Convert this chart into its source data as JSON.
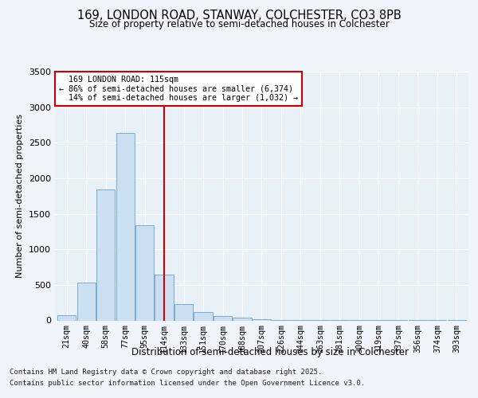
{
  "title1": "169, LONDON ROAD, STANWAY, COLCHESTER, CO3 8PB",
  "title2": "Size of property relative to semi-detached houses in Colchester",
  "xlabel": "Distribution of semi-detached houses by size in Colchester",
  "ylabel": "Number of semi-detached properties",
  "categories": [
    "21sqm",
    "40sqm",
    "58sqm",
    "77sqm",
    "95sqm",
    "114sqm",
    "133sqm",
    "151sqm",
    "170sqm",
    "188sqm",
    "207sqm",
    "226sqm",
    "244sqm",
    "263sqm",
    "281sqm",
    "300sqm",
    "319sqm",
    "337sqm",
    "356sqm",
    "374sqm",
    "393sqm"
  ],
  "values": [
    75,
    530,
    1840,
    2640,
    1340,
    640,
    230,
    115,
    65,
    40,
    18,
    8,
    4,
    2,
    1,
    0.5,
    0.5,
    0.5,
    0.5,
    0.5,
    0.5
  ],
  "bar_color": "#ccdff0",
  "bar_edge_color": "#7aabcf",
  "marker_index": 5,
  "marker_label": "169 LONDON ROAD: 115sqm",
  "pct_smaller": "86% of semi-detached houses are smaller (6,374)",
  "pct_larger": "14% of semi-detached houses are larger (1,032)",
  "marker_color": "#cc0000",
  "ylim": [
    0,
    3500
  ],
  "yticks": [
    0,
    500,
    1000,
    1500,
    2000,
    2500,
    3000,
    3500
  ],
  "footnote1": "Contains HM Land Registry data © Crown copyright and database right 2025.",
  "footnote2": "Contains public sector information licensed under the Open Government Licence v3.0.",
  "fig_facecolor": "#f0f4fb",
  "plot_facecolor": "#e8f0f8"
}
